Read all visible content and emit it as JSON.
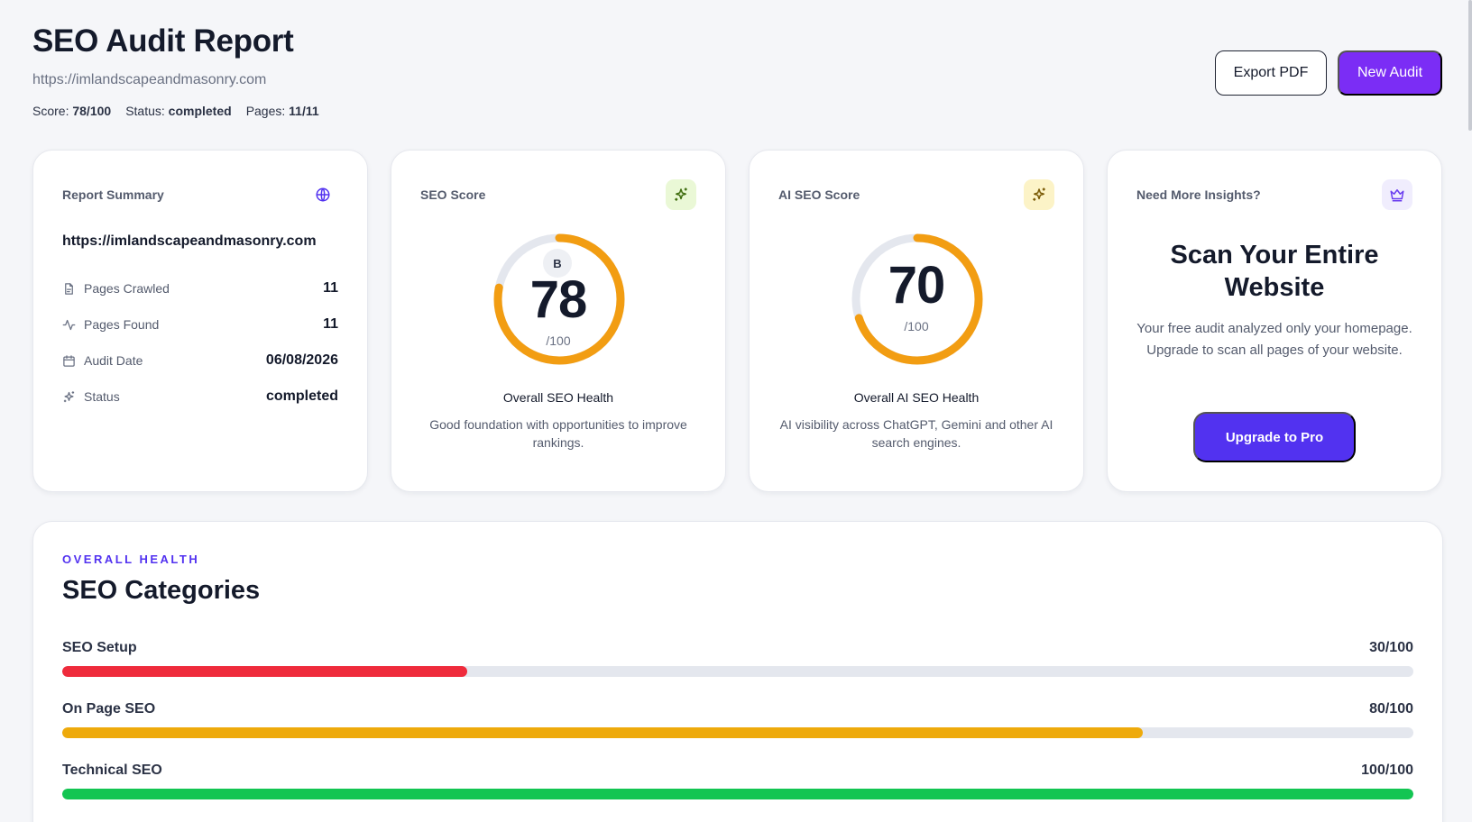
{
  "header": {
    "title": "SEO Audit Report",
    "url": "https://imlandscapeandmasonry.com",
    "score_label": "Score:",
    "score_value": "78/100",
    "status_label": "Status:",
    "status_value": "completed",
    "pages_label": "Pages:",
    "pages_value": "11/11",
    "export_label": "Export PDF",
    "new_audit_label": "New Audit"
  },
  "summary": {
    "label": "Report Summary",
    "icon": "globe-icon",
    "url": "https://imlandscapeandmasonry.com",
    "rows": [
      {
        "icon": "file-icon",
        "label": "Pages Crawled",
        "value": "11"
      },
      {
        "icon": "activity-icon",
        "label": "Pages Found",
        "value": "11"
      },
      {
        "icon": "calendar-icon",
        "label": "Audit Date",
        "value": "06/08/2026"
      },
      {
        "icon": "sparkles-icon",
        "label": "Status",
        "value": "completed"
      }
    ]
  },
  "seo_score": {
    "label": "SEO Score",
    "icon": "sparkles-icon",
    "grade": "B",
    "value": "78",
    "score_fraction": 0.78,
    "denominator": "/100",
    "title": "Overall SEO Health",
    "description": "Good foundation with opportunities to improve rankings.",
    "color": "#f29d12"
  },
  "ai_score": {
    "label": "AI SEO Score",
    "icon": "sparkles-icon",
    "value": "70",
    "score_fraction": 0.7,
    "denominator": "/100",
    "title": "Overall AI SEO Health",
    "description": "AI visibility across ChatGPT, Gemini and other AI search engines.",
    "color": "#f29d12"
  },
  "promo": {
    "label": "Need More Insights?",
    "icon": "crown-icon",
    "title": "Scan Your Entire Website",
    "text": "Your free audit analyzed only your homepage. Upgrade to scan all pages of your website.",
    "button_label": "Upgrade to Pro"
  },
  "categories": {
    "eyebrow": "OVERALL HEALTH",
    "title": "SEO Categories",
    "items": [
      {
        "name": "SEO Setup",
        "score": "30/100",
        "value": 30,
        "color": "#ef2b3c"
      },
      {
        "name": "On Page SEO",
        "score": "80/100",
        "value": 80,
        "color": "#eeaa0b"
      },
      {
        "name": "Technical SEO",
        "score": "100/100",
        "value": 100,
        "color": "#13c552"
      }
    ]
  },
  "colors": {
    "accent": "#7b2df5",
    "primary_button": "#5232f0",
    "gauge_track": "#e4e7ee"
  }
}
